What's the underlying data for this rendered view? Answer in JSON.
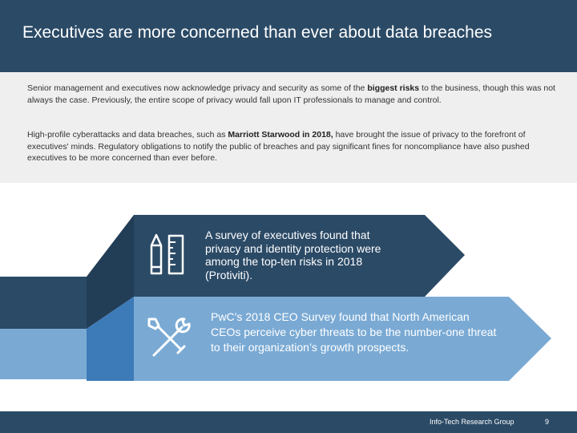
{
  "slide": {
    "title": "Executives are more concerned than ever about data breaches",
    "intro": {
      "p1_before": "Senior management and executives now acknowledge privacy and security as some of the ",
      "p1_bold": "biggest risks",
      "p1_after": " to the business, though this was not always the case. Previously, the entire scope of privacy would fall upon IT professionals to manage and control.",
      "p2_before": "High-profile cyberattacks and data breaches, such as ",
      "p2_bold": "Marriott Starwood in 2018,",
      "p2_after": " have brought the issue of privacy to the forefront of executives' minds. Regulatory obligations to notify the public of breaches and pay significant fines for noncompliance have also pushed executives to be more concerned than ever before."
    },
    "cards": [
      {
        "icon": "pencil-ruler-icon",
        "text": "A survey of executives found that privacy and identity protection were among the top-ten risks in 2018 (Protiviti)."
      },
      {
        "icon": "tools-icon",
        "text": "PwC’s 2018 CEO Survey found that North American CEOs perceive cyber threats to be the number-one threat to their organization’s growth prospects."
      }
    ],
    "colors": {
      "navy": "#2b4a66",
      "light_blue": "#7aaad4",
      "mid_blue": "#3d7ab8",
      "light_gray": "#efefef"
    }
  },
  "footer": {
    "org": "Info-Tech Research Group",
    "page": "9"
  }
}
